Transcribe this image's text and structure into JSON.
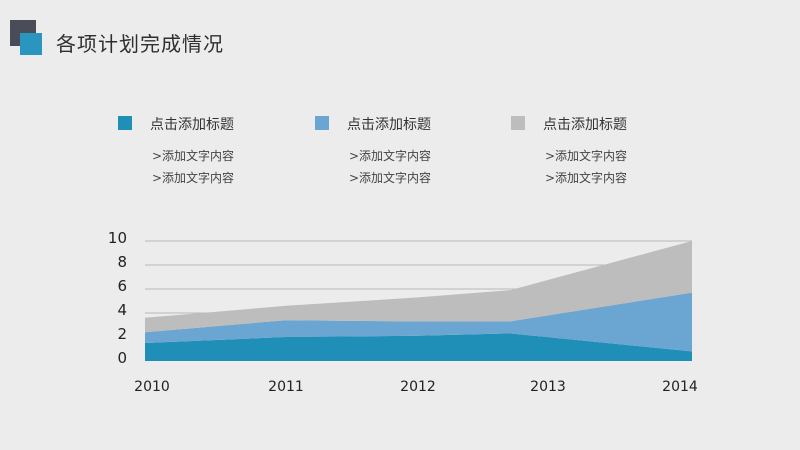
{
  "header": {
    "title": "各项计划完成情况"
  },
  "legend": [
    {
      "title": "点击添加标题",
      "color": "#1f8fb8",
      "lines": [
        ">添加文字内容",
        ">添加文字内容"
      ]
    },
    {
      "title": "点击添加标题",
      "color": "#6aa6d1",
      "lines": [
        ">添加文字内容",
        ">添加文字内容"
      ]
    },
    {
      "title": "点击添加标题",
      "color": "#bdbdbd",
      "lines": [
        ">添加文字内容",
        ">添加文字内容"
      ]
    }
  ],
  "chart_data": {
    "type": "area",
    "stacked": true,
    "x": [
      "2010",
      "2011",
      "2012",
      "2013",
      "2014"
    ],
    "series": [
      {
        "values": [
          1.5,
          2.0,
          2.1,
          2.3,
          0.8
        ],
        "color": "#1f8fb8"
      },
      {
        "values": [
          0.9,
          1.4,
          1.2,
          1.0,
          4.9
        ],
        "color": "#6aa6d1"
      },
      {
        "values": [
          1.2,
          1.2,
          2.0,
          2.6,
          4.3
        ],
        "color": "#bdbdbd"
      }
    ],
    "y_ticks": [
      "0",
      "2",
      "4",
      "6",
      "8",
      "10"
    ],
    "ylim": [
      0,
      10
    ],
    "grid": true
  }
}
